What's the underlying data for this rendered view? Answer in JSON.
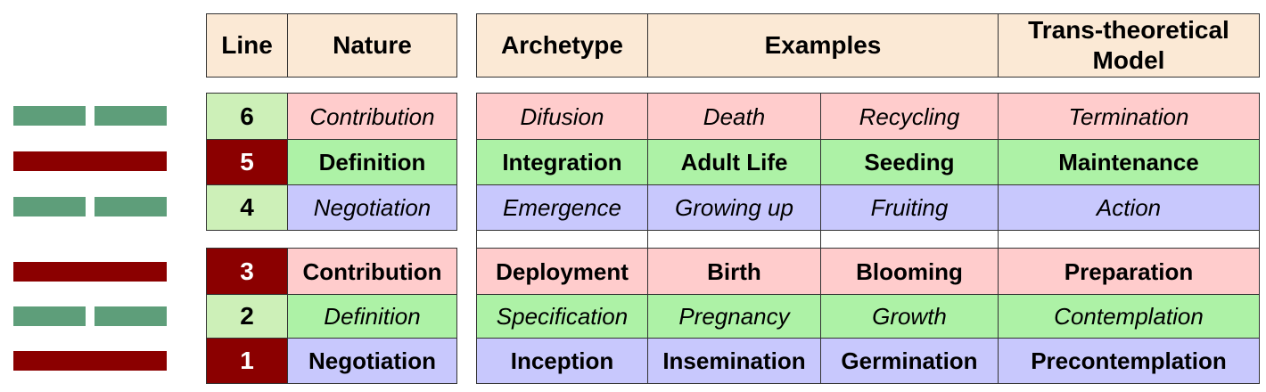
{
  "headers": {
    "line": "Line",
    "nature": "Nature",
    "archetype": "Archetype",
    "examples": "Examples",
    "model": "Trans-theoretical Model"
  },
  "rows": [
    {
      "line": "6",
      "nature": "Contribution",
      "archetype": "Difusion",
      "ex1": "Death",
      "ex2": "Recycling",
      "model": "Termination"
    },
    {
      "line": "5",
      "nature": "Definition",
      "archetype": "Integration",
      "ex1": "Adult Life",
      "ex2": "Seeding",
      "model": "Maintenance"
    },
    {
      "line": "4",
      "nature": "Negotiation",
      "archetype": "Emergence",
      "ex1": "Growing up",
      "ex2": "Fruiting",
      "model": "Action"
    },
    {
      "line": "3",
      "nature": "Contribution",
      "archetype": "Deployment",
      "ex1": "Birth",
      "ex2": "Blooming",
      "model": "Preparation"
    },
    {
      "line": "2",
      "nature": "Definition",
      "archetype": "Specification",
      "ex1": "Pregnancy",
      "ex2": "Growth",
      "model": "Contemplation"
    },
    {
      "line": "1",
      "nature": "Negotiation",
      "archetype": "Inception",
      "ex1": "Insemination",
      "ex2": "Germination",
      "model": "Precontemplation"
    }
  ],
  "colors": {
    "yang": "#8b0000",
    "yin": "#5e9e7a",
    "header": "#fbe9d5",
    "contribution": "#ffcccc",
    "definition": "#adf2a6",
    "negotiation": "#c8c8fd",
    "line_light": "#cdf0b8"
  }
}
